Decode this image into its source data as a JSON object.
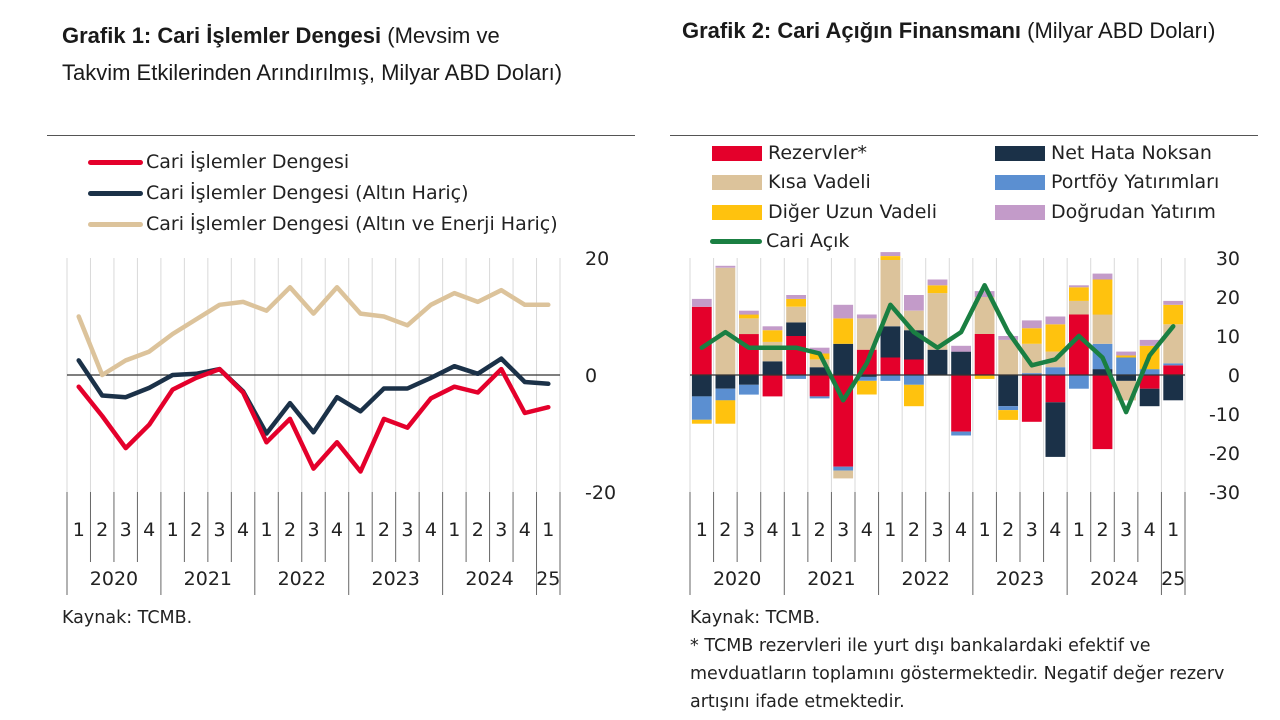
{
  "chart1": {
    "title_bold": "Grafik 1: Cari İşlemler Dengesi",
    "title_rest": " (Mevsim ve Takvim Etkilerinden Arındırılmış, Milyar ABD Doları)",
    "source": "Kaynak: TCMB.",
    "legend": [
      {
        "label": "Cari İşlemler Dengesi",
        "color": "#e4002b"
      },
      {
        "label": "Cari İşlemler Dengesi (Altın Hariç)",
        "color": "#1b3148"
      },
      {
        "label": "Cari İşlemler Dengesi (Altın ve Enerji Hariç)",
        "color": "#dcc39b"
      }
    ],
    "quarters": [
      "1",
      "2",
      "3",
      "4",
      "1",
      "2",
      "3",
      "4",
      "1",
      "2",
      "3",
      "4",
      "1",
      "2",
      "3",
      "4",
      "1",
      "2",
      "3",
      "4",
      "1"
    ],
    "years": [
      "2020",
      "2021",
      "2022",
      "2023",
      "2024",
      "25"
    ],
    "y_ticks": [
      "20",
      "0",
      "-20"
    ]
  },
  "chart2": {
    "title_bold": "Grafik 2: Cari Açığın Finansmanı",
    "title_rest": " (Milyar ABD Doları)",
    "source": "Kaynak: TCMB.",
    "footnote": "* TCMB rezervleri ile yurt dışı bankalardaki efektif ve mevduatların toplamını göstermektedir. Negatif değer rezerv artışını ifade etmektedir.",
    "legend_left": [
      {
        "label": "Rezervler*",
        "color": "#e4002b"
      },
      {
        "label": "Kısa Vadeli",
        "color": "#dcc39b"
      },
      {
        "label": "Diğer Uzun Vadeli",
        "color": "#ffc20e"
      }
    ],
    "legend_right": [
      {
        "label": "Net Hata Noksan",
        "color": "#1b3148"
      },
      {
        "label": "Portföy Yatırımları",
        "color": "#5b8fd1"
      },
      {
        "label": "Doğrudan Yatırım",
        "color": "#c39bc9"
      }
    ],
    "legend_line": {
      "label": "Cari Açık",
      "color": "#1a7f42"
    },
    "quarters": [
      "1",
      "2",
      "3",
      "4",
      "1",
      "2",
      "3",
      "4",
      "1",
      "2",
      "3",
      "4",
      "1",
      "2",
      "3",
      "4",
      "1",
      "2",
      "3",
      "4",
      "1"
    ],
    "years": [
      "2020",
      "2021",
      "2022",
      "2023",
      "2024",
      "25"
    ],
    "y_ticks": [
      "30",
      "20",
      "10",
      "0",
      "-10",
      "-20",
      "-30"
    ]
  },
  "chart_data": [
    {
      "type": "line",
      "title": "Grafik 1: Cari İşlemler Dengesi (Mevsim ve Takvim Etkilerinden Arındırılmış, Milyar ABD Doları)",
      "x": [
        "2020Q1",
        "2020Q2",
        "2020Q3",
        "2020Q4",
        "2021Q1",
        "2021Q2",
        "2021Q3",
        "2021Q4",
        "2022Q1",
        "2022Q2",
        "2022Q3",
        "2022Q4",
        "2023Q1",
        "2023Q2",
        "2023Q3",
        "2023Q4",
        "2024Q1",
        "2024Q2",
        "2024Q3",
        "2024Q4",
        "2025Q1"
      ],
      "ylim": [
        -20,
        20
      ],
      "series": [
        {
          "name": "Cari İşlemler Dengesi",
          "color": "#e4002b",
          "values": [
            -2,
            -7,
            -12.5,
            -8.5,
            -2.5,
            -0.5,
            1,
            -3,
            -11.5,
            -7.5,
            -16,
            -11.5,
            -16.5,
            -7.5,
            -9,
            -4,
            -2,
            -3,
            1,
            -6.5,
            -5.5
          ]
        },
        {
          "name": "Cari İşlemler Dengesi (Altın Hariç)",
          "color": "#1b3148",
          "values": [
            2.5,
            -3.5,
            -3.8,
            -2.2,
            0,
            0.2,
            1,
            -2.8,
            -10,
            -4.8,
            -9.8,
            -3.8,
            -6.2,
            -2.3,
            -2.3,
            -0.5,
            1.5,
            0.2,
            2.8,
            -1.2,
            -1.5
          ]
        },
        {
          "name": "Cari İşlemler Dengesi (Altın ve Enerji Hariç)",
          "color": "#dcc39b",
          "values": [
            10,
            0,
            2.5,
            4,
            7,
            9.5,
            12,
            12.5,
            11,
            15,
            10.5,
            15,
            10.5,
            10,
            8.5,
            12,
            14,
            12.5,
            14.5,
            12,
            12
          ]
        }
      ]
    },
    {
      "type": "bar",
      "title": "Grafik 2: Cari Açığın Finansmanı (Milyar ABD Doları)",
      "x": [
        "2020Q1",
        "2020Q2",
        "2020Q3",
        "2020Q4",
        "2021Q1",
        "2021Q2",
        "2021Q3",
        "2021Q4",
        "2022Q1",
        "2022Q2",
        "2022Q3",
        "2022Q4",
        "2023Q1",
        "2023Q2",
        "2023Q3",
        "2023Q4",
        "2024Q1",
        "2024Q2",
        "2024Q3",
        "2024Q4",
        "2025Q1"
      ],
      "ylim": [
        -30,
        30
      ],
      "stacked": true,
      "series": [
        {
          "name": "Rezervler*",
          "color": "#e4002b",
          "values": [
            17.5,
            0,
            10.5,
            -5.5,
            10,
            -5.5,
            -23.5,
            6.5,
            4.5,
            4,
            0,
            -14.5,
            10.5,
            0,
            -12,
            -7,
            15.5,
            -19,
            0,
            -3.5,
            2.5
          ]
        },
        {
          "name": "Net Hata Noksan",
          "color": "#1b3148",
          "values": [
            -5.5,
            -3.5,
            -2.5,
            3.5,
            3.5,
            2,
            8,
            -0.5,
            8,
            7.5,
            6.5,
            6,
            0,
            -8,
            0,
            -14,
            0,
            1.5,
            -1.5,
            -4.5,
            -6.5
          ]
        },
        {
          "name": "Portföy Yatırımları",
          "color": "#5b8fd1",
          "values": [
            -6,
            -3,
            -2.5,
            0,
            -1,
            -0.5,
            -1,
            -1,
            -1.5,
            -2.5,
            0,
            -1,
            0,
            -1,
            0.5,
            2,
            -3.5,
            6.5,
            4.5,
            1.5,
            0.5
          ]
        },
        {
          "name": "Kısa Vadeli",
          "color": "#dcc39b",
          "values": [
            0,
            27.5,
            4,
            5,
            4,
            2,
            -2,
            8,
            17,
            5,
            14.5,
            0,
            9.5,
            9,
            7.5,
            4,
            3.5,
            7.5,
            -5,
            0,
            10
          ]
        },
        {
          "name": "Diğer Uzun Vadeli",
          "color": "#ffc20e",
          "values": [
            -1,
            -6,
            1,
            3,
            2,
            1.5,
            6.5,
            -3.5,
            1,
            -5.5,
            2,
            0,
            -1,
            -2.5,
            4,
            7,
            3.5,
            9,
            0.5,
            6,
            5
          ]
        },
        {
          "name": "Doğrudan Yatırım",
          "color": "#c39bc9",
          "values": [
            2,
            0.5,
            1,
            1,
            1,
            1.5,
            3.5,
            1,
            1,
            4,
            1.5,
            1.5,
            1.5,
            1,
            2,
            2,
            0.5,
            1.5,
            1,
            1.5,
            1
          ]
        },
        {
          "name": "Cari Açık",
          "type": "line",
          "color": "#1a7f42",
          "values": [
            7,
            11,
            7,
            7,
            7,
            5.5,
            -6.5,
            3,
            18,
            11,
            7,
            11,
            23,
            11,
            2.5,
            4,
            10,
            4.5,
            -9.5,
            5,
            12.5
          ]
        }
      ]
    }
  ]
}
